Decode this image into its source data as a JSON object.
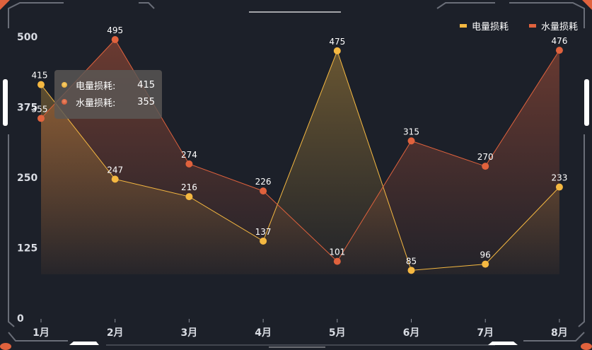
{
  "chart_data": {
    "type": "line",
    "title": "",
    "xlabel": "",
    "ylabel": "",
    "categories": [
      "1月",
      "2月",
      "3月",
      "4月",
      "5月",
      "6月",
      "7月",
      "8月"
    ],
    "ylim": [
      0,
      500
    ],
    "yticks": [
      0,
      125,
      250,
      375,
      500
    ],
    "grid": false,
    "legend_position": "top-right",
    "series": [
      {
        "name": "电量损耗",
        "color": "#f5b841",
        "values": [
          415,
          247,
          216,
          137,
          475,
          85,
          96,
          233
        ]
      },
      {
        "name": "水量损耗",
        "color": "#e0623d",
        "values": [
          355,
          495,
          274,
          226,
          101,
          315,
          270,
          476
        ]
      }
    ],
    "tooltip": {
      "category_index": 0,
      "rows": [
        {
          "label": "电量损耗:",
          "value": "415",
          "color": "#f5b841"
        },
        {
          "label": "水量损耗:",
          "value": "355",
          "color": "#e0623d"
        }
      ]
    }
  },
  "theme": {
    "background": "#1c2029",
    "frame_color": "#6a6e78",
    "accent_orange": "#e0623d",
    "accent_white": "#ffffff"
  }
}
